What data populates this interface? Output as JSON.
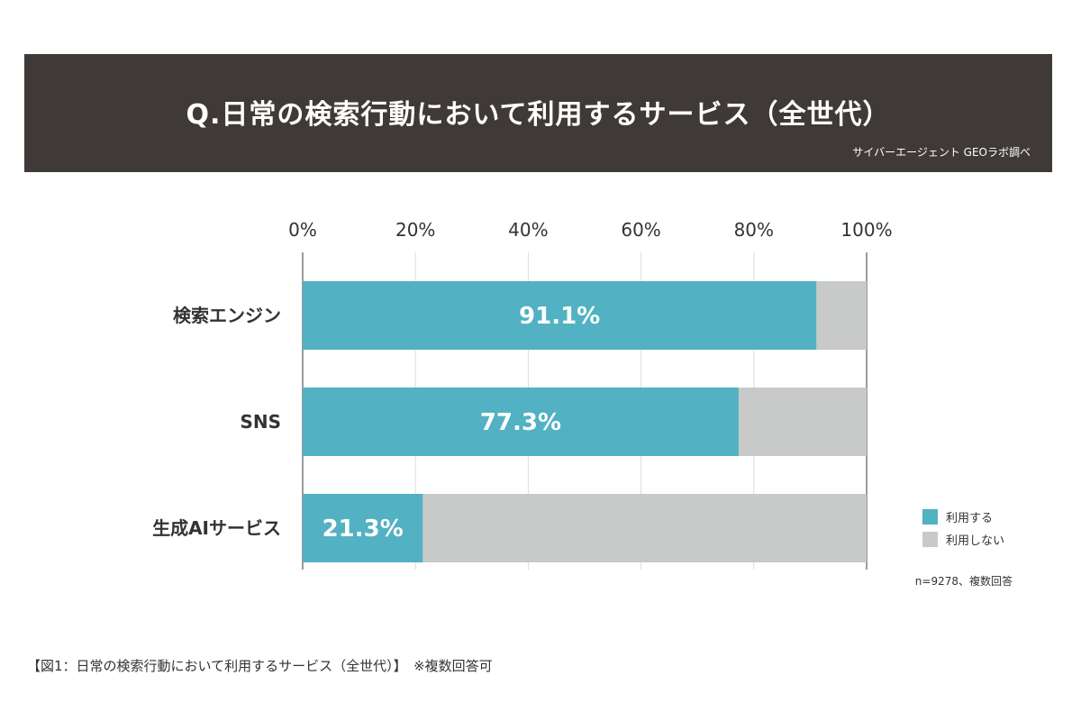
{
  "header": {
    "title": "Q.日常の検索行動において利用するサービス（全世代）",
    "source": "サイバーエージェント GEOラボ調べ"
  },
  "chart_data": {
    "type": "bar",
    "orientation": "horizontal",
    "stacked": true,
    "categories": [
      "検索エンジン",
      "SNS",
      "生成AIサービス"
    ],
    "series": [
      {
        "name": "利用する",
        "values": [
          91.1,
          77.3,
          21.3
        ],
        "color": "#52b1c2"
      },
      {
        "name": "利用しない",
        "values": [
          8.9,
          22.7,
          78.7
        ],
        "color": "#c8c9c9"
      }
    ],
    "data_labels": [
      "91.1%",
      "77.3%",
      "21.3%"
    ],
    "xlim": [
      0,
      100
    ],
    "x_ticks": [
      0,
      20,
      40,
      60,
      80,
      100
    ],
    "x_tick_labels": [
      "0%",
      "20%",
      "40%",
      "60%",
      "80%",
      "100%"
    ],
    "grid": true,
    "legend_position": "bottom-right",
    "note": "n=9278、複数回答"
  },
  "caption": "【図1：日常の検索行動において利用するサービス（全世代）】　※複数回答可"
}
